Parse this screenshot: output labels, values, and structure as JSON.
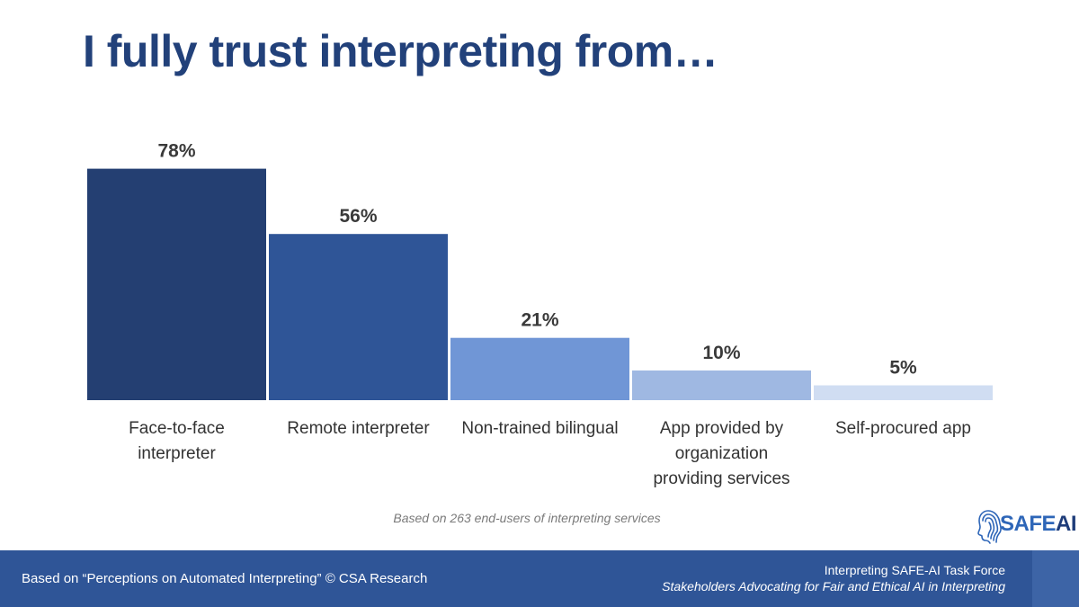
{
  "slide": {
    "title": "I fully trust interpreting from…",
    "note": "Based on 263 end-users of interpreting services"
  },
  "chart_data": {
    "type": "bar",
    "categories": [
      "Face-to-face interpreter",
      "Remote interpreter",
      "Non-trained bilingual",
      "App provided by organization providing services",
      "Self-procured app"
    ],
    "values": [
      78,
      56,
      21,
      10,
      5
    ],
    "data_labels": [
      "78%",
      "56%",
      "21%",
      "10%",
      "5%"
    ],
    "bar_colors": [
      "#243f72",
      "#2f5597",
      "#7096d6",
      "#9fb8e2",
      "#d0ddf2"
    ],
    "ylim": [
      0,
      100
    ],
    "grid": false,
    "legend": "none"
  },
  "logo": {
    "safe": "SAFE",
    "ai": "AI"
  },
  "footer": {
    "source": "Based on “Perceptions on Automated Interpreting” © CSA Research",
    "org": "Interpreting SAFE-AI Task Force",
    "tagline": "Stakeholders Advocating for Fair and Ethical AI in Interpreting"
  }
}
